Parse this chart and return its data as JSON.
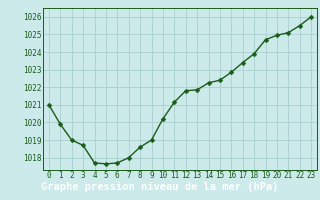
{
  "x": [
    0,
    1,
    2,
    3,
    4,
    5,
    6,
    7,
    8,
    9,
    10,
    11,
    12,
    13,
    14,
    15,
    16,
    17,
    18,
    19,
    20,
    21,
    22,
    23
  ],
  "y": [
    1021.0,
    1019.9,
    1019.0,
    1018.7,
    1017.7,
    1017.65,
    1017.7,
    1018.0,
    1018.6,
    1019.0,
    1020.2,
    1021.15,
    1021.8,
    1021.85,
    1022.25,
    1022.4,
    1022.85,
    1023.4,
    1023.9,
    1024.7,
    1024.95,
    1025.1,
    1025.5,
    1026.0
  ],
  "line_color": "#1a5c1a",
  "marker": "D",
  "marker_size": 2.5,
  "linewidth": 1.0,
  "bg_color": "#cceaea",
  "grid_color": "#aacfcf",
  "ylim": [
    1017.3,
    1026.5
  ],
  "yticks": [
    1018,
    1019,
    1020,
    1021,
    1022,
    1023,
    1024,
    1025,
    1026
  ],
  "xticks": [
    0,
    1,
    2,
    3,
    4,
    5,
    6,
    7,
    8,
    9,
    10,
    11,
    12,
    13,
    14,
    15,
    16,
    17,
    18,
    19,
    20,
    21,
    22,
    23
  ],
  "xlabel": "Graphe pression niveau de la mer (hPa)",
  "xlabel_fontsize": 7.5,
  "tick_fontsize": 5.5,
  "axis_label_color": "#1a5c1a",
  "bottom_bar_color": "#1a6b1a",
  "bottom_bar_text_color": "#ffffff"
}
